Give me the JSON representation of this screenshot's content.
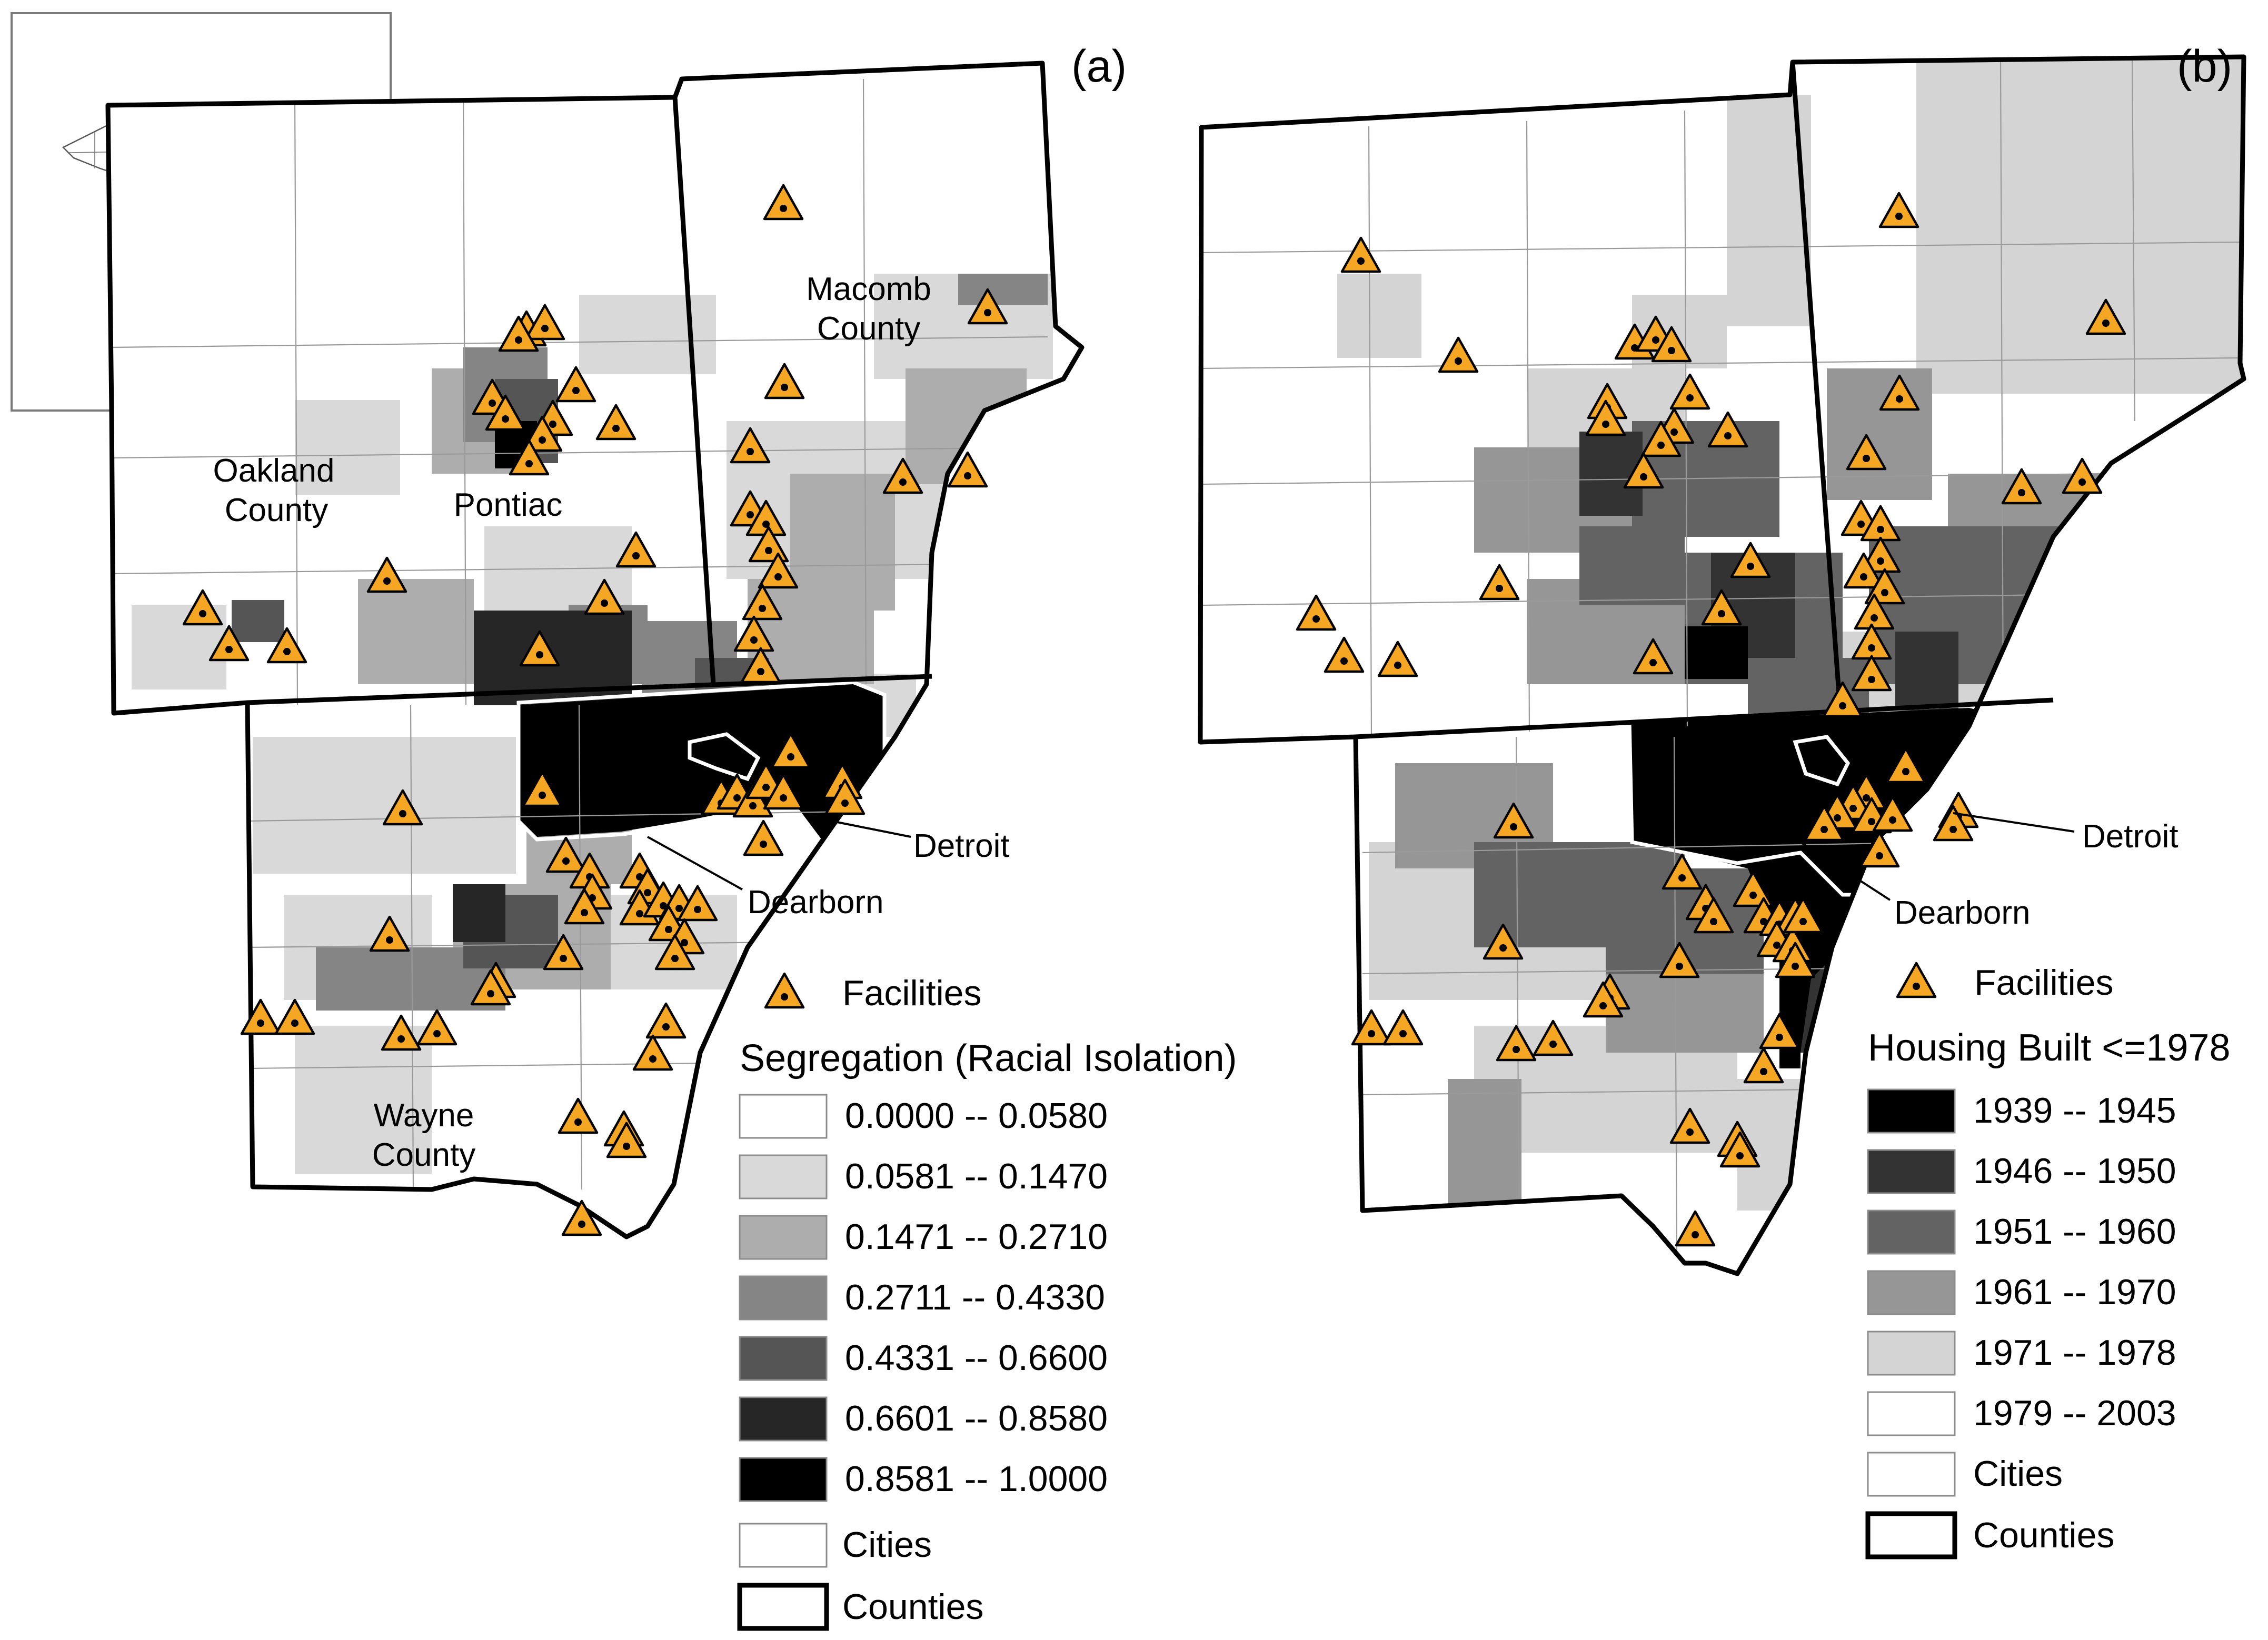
{
  "panels": [
    {
      "tag": "(a)",
      "map_labels": {
        "oakland_1": "Oakland",
        "oakland_2": "County",
        "macomb_1": "Macomb",
        "macomb_2": "County",
        "wayne_1": "Wayne",
        "wayne_2": "County",
        "pontiac": "Pontiac",
        "detroit": "Detroit",
        "dearborn": "Dearborn"
      },
      "legend": {
        "facilities_label": "Facilities",
        "title": "Segregation (Racial Isolation)",
        "classes": [
          {
            "label": "0.0000 -- 0.0580",
            "color": "#ffffff"
          },
          {
            "label": "0.0581 -- 0.1470",
            "color": "#d9d9d9"
          },
          {
            "label": "0.1471 -- 0.2710",
            "color": "#adadad"
          },
          {
            "label": "0.2711 -- 0.4330",
            "color": "#858585"
          },
          {
            "label": "0.4331 -- 0.6600",
            "color": "#555555"
          },
          {
            "label": "0.6601 -- 0.8580",
            "color": "#262626"
          },
          {
            "label": "0.8581 -- 1.0000",
            "color": "#000000"
          }
        ],
        "cities_label": "Cities",
        "counties_label": "Counties"
      }
    },
    {
      "tag": "(b)",
      "map_labels": {
        "detroit": "Detroit",
        "dearborn": "Dearborn"
      },
      "legend": {
        "facilities_label": "Facilities",
        "title": "Housing Built <=1978",
        "classes": [
          {
            "label": "1939 -- 1945",
            "color": "#000000"
          },
          {
            "label": "1946 -- 1950",
            "color": "#333333"
          },
          {
            "label": "1951 -- 1960",
            "color": "#636363"
          },
          {
            "label": "1961 -- 1970",
            "color": "#969696"
          },
          {
            "label": "1971 -- 1978",
            "color": "#d4d4d4"
          },
          {
            "label": "1979 -- 2003",
            "color": "#ffffff"
          }
        ],
        "cities_label": "Cities",
        "counties_label": "Counties"
      }
    }
  ],
  "symbols": {
    "facility_icon": "orange-triangle-with-dot",
    "facility_color": "#f5a623"
  }
}
